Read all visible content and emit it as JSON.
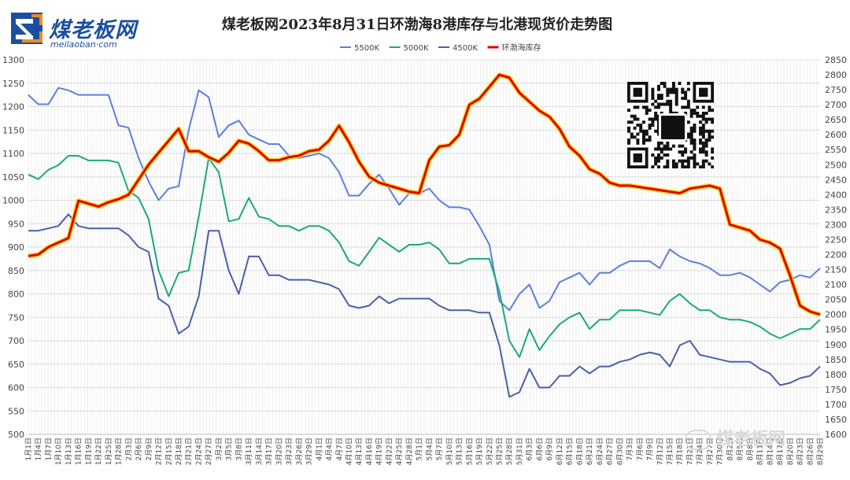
{
  "logo": {
    "brand_cn": "煤老板网",
    "brand_url": "meilaoban·com"
  },
  "watermark": {
    "text": "煤老板网"
  },
  "chart_data": {
    "type": "line",
    "title": "煤老板网2023年8月31日环渤海8港库存与北港现货价走势图",
    "left_axis": {
      "ylim": [
        500,
        1300
      ],
      "ticks": [
        500,
        550,
        600,
        650,
        700,
        750,
        800,
        850,
        900,
        950,
        1000,
        1050,
        1100,
        1150,
        1200,
        1250,
        1300
      ]
    },
    "right_axis": {
      "ylim": [
        1600,
        2850
      ],
      "ticks": [
        1600,
        1650,
        1700,
        1750,
        1800,
        1850,
        1900,
        1950,
        2000,
        2050,
        2100,
        2150,
        2200,
        2250,
        2300,
        2350,
        2400,
        2450,
        2500,
        2550,
        2600,
        2650,
        2700,
        2750,
        2800,
        2850
      ]
    },
    "x_tick_labels": [
      "1月1日",
      "1月4日",
      "1月7日",
      "1月10日",
      "1月13日",
      "1月16日",
      "1月19日",
      "1月22日",
      "1月25日",
      "1月28日",
      "2月3日",
      "2月6日",
      "2月9日",
      "2月12日",
      "2月15日",
      "2月18日",
      "2月21日",
      "2月24日",
      "2月27日",
      "3月2日",
      "3月5日",
      "3月8日",
      "3月11日",
      "3月14日",
      "3月17日",
      "3月20日",
      "3月23日",
      "3月26日",
      "3月29日",
      "4月1日",
      "4月4日",
      "4月7日",
      "4月10日",
      "4月13日",
      "4月16日",
      "4月19日",
      "4月22日",
      "4月25日",
      "4月28日",
      "5月1日",
      "5月4日",
      "5月7日",
      "5月10日",
      "5月13日",
      "5月16日",
      "5月19日",
      "5月22日",
      "5月25日",
      "5月28日",
      "5月31日",
      "6月3日",
      "6月6日",
      "6月9日",
      "6月12日",
      "6月15日",
      "6月18日",
      "6月21日",
      "6月24日",
      "6月27日",
      "6月30日",
      "7月3日",
      "7月6日",
      "7月9日",
      "7月12日",
      "7月15日",
      "7月18日",
      "7月21日",
      "7月24日",
      "7月27日",
      "7月30日",
      "8月2日",
      "8月5日",
      "8月8日",
      "8月11日",
      "8月14日",
      "8月17日",
      "8月20日",
      "8月23日",
      "8月26日",
      "8月29日"
    ],
    "legend_position": "top",
    "grid": true,
    "series": [
      {
        "name": "5500K",
        "axis": "left",
        "color": "#5b7fe0",
        "values": [
          1225,
          1205,
          1205,
          1240,
          1235,
          1225,
          1225,
          1225,
          1225,
          1160,
          1155,
          1090,
          1040,
          1000,
          1025,
          1030,
          1150,
          1235,
          1220,
          1135,
          1160,
          1170,
          1140,
          1130,
          1120,
          1120,
          1095,
          1090,
          1095,
          1100,
          1090,
          1060,
          1010,
          1010,
          1035,
          1055,
          1025,
          990,
          1015,
          1015,
          1025,
          1000,
          985,
          985,
          980,
          945,
          905,
          785,
          765,
          800,
          820,
          770,
          785,
          825,
          835,
          845,
          820,
          845,
          845,
          860,
          870,
          870,
          870,
          855,
          895,
          880,
          870,
          865,
          855,
          840,
          840,
          845,
          835,
          820,
          805,
          825,
          830,
          840,
          835,
          855
        ]
      },
      {
        "name": "5000K",
        "axis": "left",
        "color": "#1aa97a",
        "values": [
          1055,
          1045,
          1065,
          1075,
          1095,
          1095,
          1085,
          1085,
          1085,
          1080,
          1020,
          1005,
          960,
          850,
          795,
          845,
          850,
          965,
          1090,
          1060,
          955,
          960,
          1005,
          965,
          960,
          945,
          945,
          935,
          945,
          945,
          935,
          910,
          870,
          860,
          890,
          920,
          905,
          890,
          905,
          905,
          910,
          895,
          865,
          865,
          875,
          875,
          875,
          805,
          700,
          665,
          725,
          680,
          710,
          735,
          750,
          760,
          725,
          745,
          745,
          765,
          765,
          765,
          760,
          755,
          785,
          800,
          780,
          765,
          765,
          750,
          745,
          745,
          740,
          730,
          715,
          705,
          715,
          725,
          725,
          745
        ]
      },
      {
        "name": "4500K",
        "axis": "left",
        "color": "#4a5fa8",
        "values": [
          935,
          935,
          940,
          945,
          970,
          945,
          940,
          940,
          940,
          940,
          925,
          900,
          890,
          790,
          775,
          715,
          730,
          795,
          935,
          935,
          850,
          800,
          880,
          880,
          840,
          840,
          830,
          830,
          830,
          825,
          820,
          810,
          775,
          770,
          775,
          795,
          780,
          790,
          790,
          790,
          790,
          775,
          765,
          765,
          765,
          760,
          760,
          690,
          580,
          590,
          640,
          600,
          600,
          625,
          625,
          645,
          630,
          645,
          645,
          655,
          660,
          670,
          675,
          670,
          645,
          690,
          700,
          670,
          665,
          660,
          655,
          655,
          655,
          640,
          630,
          605,
          610,
          620,
          625,
          645
        ]
      },
      {
        "name": "环渤海库存",
        "axis": "right",
        "color": "#e00000",
        "values": [
          2195,
          2200,
          2225,
          2240,
          2255,
          2380,
          2370,
          2360,
          2375,
          2385,
          2400,
          2450,
          2500,
          2540,
          2580,
          2620,
          2545,
          2545,
          2525,
          2510,
          2540,
          2580,
          2570,
          2545,
          2515,
          2515,
          2525,
          2530,
          2545,
          2550,
          2580,
          2630,
          2575,
          2510,
          2460,
          2440,
          2430,
          2420,
          2410,
          2405,
          2515,
          2560,
          2565,
          2600,
          2700,
          2720,
          2760,
          2800,
          2790,
          2740,
          2710,
          2680,
          2660,
          2620,
          2560,
          2530,
          2485,
          2470,
          2440,
          2430,
          2430,
          2425,
          2420,
          2415,
          2410,
          2405,
          2420,
          2425,
          2430,
          2420,
          2300,
          2290,
          2280,
          2250,
          2240,
          2220,
          2130,
          2030,
          2010,
          2000
        ]
      }
    ]
  },
  "qr": {
    "label": "qr-code"
  }
}
